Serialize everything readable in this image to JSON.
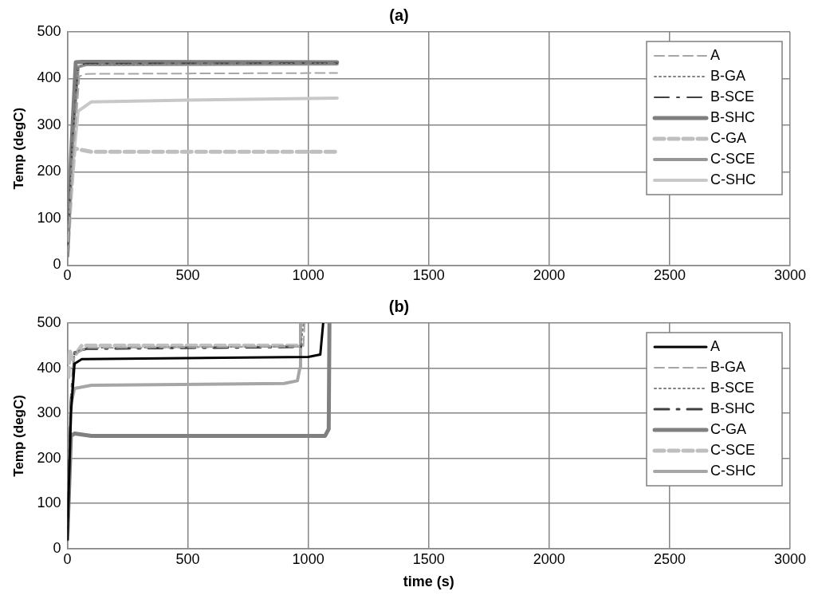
{
  "chart_data": [
    {
      "type": "line",
      "title": "(a)",
      "ylabel": "Temp (degC)",
      "xlim": [
        0,
        3000
      ],
      "xticks": [
        0,
        500,
        1000,
        1500,
        2000,
        2500,
        3000
      ],
      "ylim": [
        0,
        500
      ],
      "yticks": [
        0,
        100,
        200,
        300,
        400,
        500
      ],
      "grid": true,
      "legend": "top right",
      "marker": "none",
      "series": [
        {
          "name": "A",
          "color": "#a6a6a6",
          "line_style": "dashed",
          "x": [
            0,
            20,
            50,
            80,
            1120
          ],
          "values": [
            20,
            200,
            405,
            410,
            412
          ]
        },
        {
          "name": "B-GA",
          "color": "#7f7f7f",
          "line_style": "dotted",
          "x": [
            0,
            20,
            45,
            80,
            1120
          ],
          "values": [
            20,
            250,
            425,
            430,
            432
          ]
        },
        {
          "name": "B-SCE",
          "color": "#404040",
          "line_style": "dashdot",
          "x": [
            0,
            20,
            45,
            80,
            1120
          ],
          "values": [
            20,
            260,
            428,
            432,
            433
          ]
        },
        {
          "name": "B-SHC",
          "color": "#7f7f7f",
          "line_style": "solid",
          "x": [
            0,
            15,
            35,
            60,
            1120
          ],
          "values": [
            20,
            230,
            435,
            436,
            435
          ]
        },
        {
          "name": "C-GA",
          "color": "#bfbfbf",
          "line_style": "dashed",
          "x": [
            0,
            15,
            30,
            100,
            1120
          ],
          "values": [
            20,
            150,
            250,
            243,
            243
          ]
        },
        {
          "name": "C-SCE",
          "color": "#969696",
          "line_style": "solid",
          "x": [
            0,
            20,
            45,
            80,
            1120
          ],
          "values": [
            20,
            260,
            425,
            430,
            431
          ]
        },
        {
          "name": "C-SHC",
          "color": "#c8c8c8",
          "line_style": "solid",
          "x": [
            0,
            20,
            45,
            100,
            500,
            1120
          ],
          "values": [
            20,
            200,
            330,
            350,
            354,
            358
          ]
        }
      ]
    },
    {
      "type": "line",
      "title": "(b)",
      "xlabel": "time (s)",
      "ylabel": "Temp (degC)",
      "xlim": [
        0,
        3000
      ],
      "xticks": [
        0,
        500,
        1000,
        1500,
        2000,
        2500,
        3000
      ],
      "ylim": [
        0,
        500
      ],
      "yticks": [
        0,
        100,
        200,
        300,
        400,
        500
      ],
      "grid": true,
      "legend": "top right",
      "marker": "none",
      "series": [
        {
          "name": "A",
          "color": "#000000",
          "line_style": "solid",
          "x": [
            0,
            15,
            30,
            60,
            1000,
            1050,
            1062
          ],
          "values": [
            20,
            300,
            410,
            420,
            425,
            430,
            500
          ]
        },
        {
          "name": "B-GA",
          "color": "#a6a6a6",
          "line_style": "dashed",
          "x": [
            0,
            15,
            30,
            80,
            980,
            985
          ],
          "values": [
            20,
            320,
            430,
            445,
            448,
            500
          ]
        },
        {
          "name": "B-SCE",
          "color": "#7f7f7f",
          "line_style": "dotted",
          "x": [
            0,
            15,
            30,
            80,
            970,
            980
          ],
          "values": [
            20,
            330,
            435,
            445,
            448,
            500
          ]
        },
        {
          "name": "B-SHC",
          "color": "#404040",
          "line_style": "dashdot",
          "x": [
            0,
            15,
            30,
            80,
            970,
            975
          ],
          "values": [
            20,
            330,
            435,
            443,
            447,
            460
          ]
        },
        {
          "name": "C-GA",
          "color": "#808080",
          "line_style": "solid",
          "x": [
            0,
            15,
            30,
            100,
            1070,
            1085,
            1088
          ],
          "values": [
            20,
            250,
            255,
            250,
            250,
            265,
            500
          ]
        },
        {
          "name": "C-SCE",
          "color": "#bfbfbf",
          "line_style": "dashed",
          "x": [
            5,
            10,
            20,
            60,
            960
          ],
          "values": [
            380,
            440,
            420,
            450,
            450
          ]
        },
        {
          "name": "C-SHC",
          "color": "#a6a6a6",
          "line_style": "solid",
          "x": [
            0,
            15,
            30,
            100,
            900,
            955,
            965,
            968
          ],
          "values": [
            20,
            320,
            355,
            362,
            366,
            372,
            400,
            500
          ]
        }
      ]
    }
  ]
}
